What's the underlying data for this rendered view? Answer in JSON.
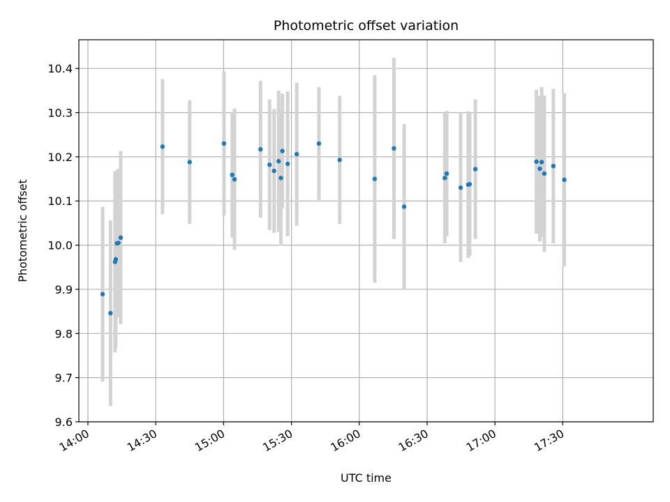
{
  "chart_data": {
    "type": "scatter",
    "title": "Photometric offset variation",
    "xlabel": "UTC time",
    "ylabel": "Photometric offset",
    "ylim": [
      9.6,
      10.465
    ],
    "xlim": [
      "13:56",
      "18:10"
    ],
    "yticks": [
      9.6,
      9.7,
      9.8,
      9.9,
      10.0,
      10.1,
      10.2,
      10.3,
      10.4
    ],
    "ytick_labels": [
      "9.6",
      "9.7",
      "9.8",
      "9.9",
      "10.0",
      "10.1",
      "10.2",
      "10.3",
      "10.4"
    ],
    "xticks": [
      "14:00",
      "14:30",
      "15:00",
      "15:30",
      "16:00",
      "16:30",
      "17:00",
      "17:30"
    ],
    "xtick_labels": [
      "14:00",
      "14:30",
      "15:00",
      "15:30",
      "16:00",
      "16:30",
      "17:00",
      "17:30"
    ],
    "grid": true,
    "colors": {
      "points": "#1f77b4",
      "errorbars": "#d3d3d3",
      "grid": "#b0b0b0"
    },
    "points": [
      {
        "x": "14:06:30",
        "y": 9.889,
        "err": 0.198
      },
      {
        "x": "14:10:00",
        "y": 9.846,
        "err": 0.21
      },
      {
        "x": "14:12:00",
        "y": 9.962,
        "err": 0.205
      },
      {
        "x": "14:12:20",
        "y": 9.968,
        "err": 0.2
      },
      {
        "x": "14:12:50",
        "y": 10.004,
        "err": 0.165
      },
      {
        "x": "14:13:30",
        "y": 10.005,
        "err": 0.168
      },
      {
        "x": "14:14:30",
        "y": 10.017,
        "err": 0.196
      },
      {
        "x": "14:33:00",
        "y": 10.223,
        "err": 0.153
      },
      {
        "x": "14:45:00",
        "y": 10.188,
        "err": 0.14
      },
      {
        "x": "15:00:10",
        "y": 10.23,
        "err": 0.163
      },
      {
        "x": "15:03:50",
        "y": 10.159,
        "err": 0.142
      },
      {
        "x": "15:04:50",
        "y": 10.149,
        "err": 0.16
      },
      {
        "x": "15:16:20",
        "y": 10.217,
        "err": 0.155
      },
      {
        "x": "15:20:20",
        "y": 10.182,
        "err": 0.148
      },
      {
        "x": "15:22:20",
        "y": 10.168,
        "err": 0.14
      },
      {
        "x": "15:24:20",
        "y": 10.19,
        "err": 0.16
      },
      {
        "x": "15:25:20",
        "y": 10.152,
        "err": 0.153
      },
      {
        "x": "15:26:00",
        "y": 10.213,
        "err": 0.13
      },
      {
        "x": "15:28:20",
        "y": 10.184,
        "err": 0.164
      },
      {
        "x": "15:32:20",
        "y": 10.206,
        "err": 0.162
      },
      {
        "x": "15:42:10",
        "y": 10.23,
        "err": 0.128
      },
      {
        "x": "15:51:20",
        "y": 10.193,
        "err": 0.145
      },
      {
        "x": "16:06:50",
        "y": 10.15,
        "err": 0.235
      },
      {
        "x": "16:15:20",
        "y": 10.219,
        "err": 0.205
      },
      {
        "x": "16:19:50",
        "y": 10.087,
        "err": 0.187
      },
      {
        "x": "16:37:50",
        "y": 10.152,
        "err": 0.148
      },
      {
        "x": "16:38:40",
        "y": 10.162,
        "err": 0.142
      },
      {
        "x": "16:44:50",
        "y": 10.13,
        "err": 0.168
      },
      {
        "x": "16:48:10",
        "y": 10.137,
        "err": 0.166
      },
      {
        "x": "16:48:50",
        "y": 10.138,
        "err": 0.162
      },
      {
        "x": "16:51:20",
        "y": 10.172,
        "err": 0.158
      },
      {
        "x": "17:18:20",
        "y": 10.189,
        "err": 0.163
      },
      {
        "x": "17:19:50",
        "y": 10.173,
        "err": 0.165
      },
      {
        "x": "17:20:40",
        "y": 10.188,
        "err": 0.17
      },
      {
        "x": "17:21:50",
        "y": 10.162,
        "err": 0.177
      },
      {
        "x": "17:25:50",
        "y": 10.179,
        "err": 0.175
      },
      {
        "x": "17:30:40",
        "y": 10.148,
        "err": 0.196
      }
    ]
  }
}
